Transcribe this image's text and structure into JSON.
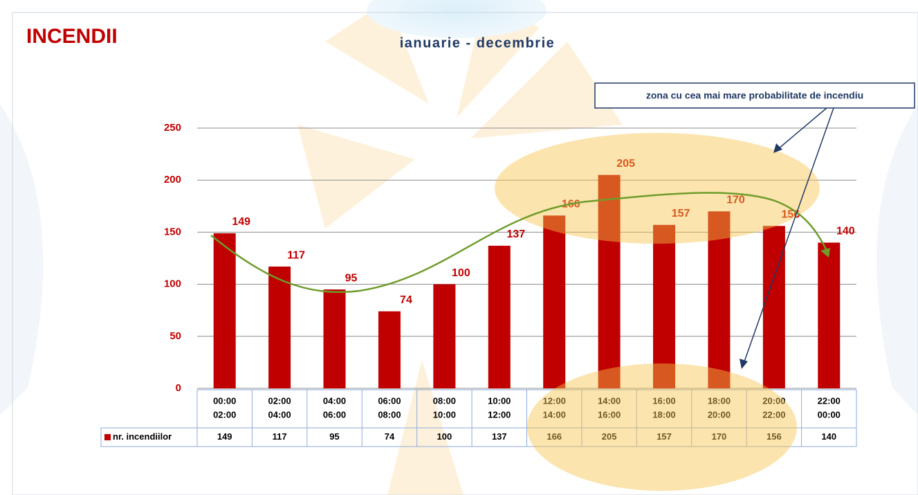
{
  "chart_data": {
    "type": "bar",
    "title": "INCENDII",
    "subtitle": "ianuarie - decembrie",
    "annotation": "zona cu cea mai mare probabilitate de incendiu",
    "categories": [
      [
        "00:00",
        "02:00"
      ],
      [
        "02:00",
        "04:00"
      ],
      [
        "04:00",
        "06:00"
      ],
      [
        "06:00",
        "08:00"
      ],
      [
        "08:00",
        "10:00"
      ],
      [
        "10:00",
        "12:00"
      ],
      [
        "12:00",
        "14:00"
      ],
      [
        "14:00",
        "16:00"
      ],
      [
        "16:00",
        "18:00"
      ],
      [
        "18:00",
        "20:00"
      ],
      [
        "20:00",
        "22:00"
      ],
      [
        "22:00",
        "00:00"
      ]
    ],
    "series": [
      {
        "name": "nr. incendiilor",
        "color": "#c00000",
        "values": [
          149,
          117,
          95,
          74,
          100,
          137,
          166,
          205,
          157,
          170,
          156,
          140
        ]
      }
    ],
    "ylim": [
      0,
      250
    ],
    "yticks": [
      0,
      50,
      100,
      150,
      200,
      250
    ],
    "grid": true
  }
}
